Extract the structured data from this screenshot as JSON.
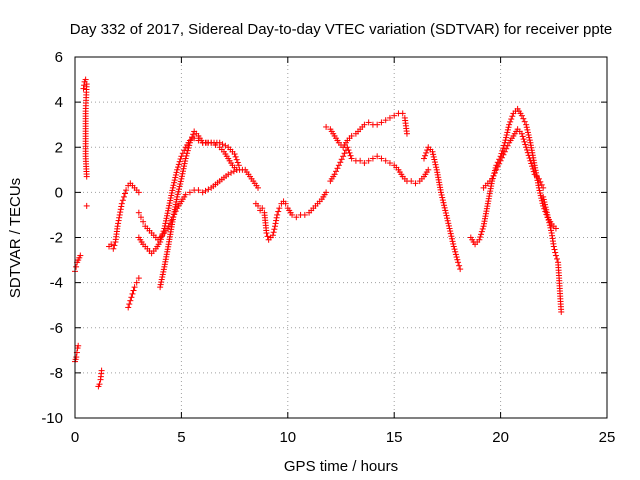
{
  "chart_data": {
    "type": "scatter",
    "title": "Day 332 of 2017, Sidereal Day-to-day VTEC variation (SDTVAR) for receiver ppte",
    "xlabel": "GPS time / hours",
    "ylabel": "SDTVAR / TECUs",
    "xlim": [
      0,
      25
    ],
    "ylim": [
      -10,
      6
    ],
    "xticks": [
      0,
      5,
      10,
      15,
      20,
      25
    ],
    "xtick_labels": [
      "0",
      "5",
      "10",
      "15",
      "20",
      "25"
    ],
    "yticks": [
      -10,
      -8,
      -6,
      -4,
      -2,
      0,
      2,
      4,
      6
    ],
    "ytick_labels": [
      "-10",
      "-8",
      "-6",
      "-4",
      "-2",
      "0",
      "2",
      "4",
      "6"
    ],
    "grid": true,
    "marker": "plus",
    "color": "#ff0000",
    "series": [
      {
        "name": "a",
        "x": [
          0.0,
          0.05,
          0.1,
          0.15,
          0.2,
          0.25
        ],
        "y": [
          -3.5,
          -3.3,
          -3.1,
          -3.0,
          -2.9,
          -2.8
        ]
      },
      {
        "name": "b",
        "x": [
          0.0,
          0.03,
          0.06,
          0.09,
          0.12,
          0.15
        ],
        "y": [
          -7.5,
          -7.4,
          -7.3,
          -7.1,
          -6.9,
          -6.8
        ]
      },
      {
        "name": "c",
        "x": [
          0.4,
          0.45,
          0.5,
          0.55,
          0.5,
          0.5,
          0.5,
          0.55
        ],
        "y": [
          4.6,
          4.9,
          5.0,
          4.8,
          3.6,
          2.6,
          1.6,
          0.7
        ]
      },
      {
        "name": "c2",
        "x": [
          0.55
        ],
        "y": [
          -0.6
        ]
      },
      {
        "name": "d",
        "x": [
          1.1,
          1.15,
          1.2,
          1.25
        ],
        "y": [
          -8.6,
          -8.5,
          -8.3,
          -7.9
        ]
      },
      {
        "name": "e",
        "x": [
          1.6,
          1.7,
          1.8,
          1.9,
          2.0,
          2.1,
          2.2,
          2.3,
          2.4,
          2.5,
          2.6,
          2.7,
          2.8,
          2.9,
          3.0
        ],
        "y": [
          -2.4,
          -2.3,
          -2.5,
          -2.2,
          -1.5,
          -1.0,
          -0.5,
          -0.2,
          0.1,
          0.3,
          0.4,
          0.3,
          0.2,
          0.1,
          0.0
        ]
      },
      {
        "name": "f",
        "x": [
          2.5,
          2.6,
          2.7,
          2.8,
          2.9,
          3.0
        ],
        "y": [
          -5.1,
          -4.8,
          -4.5,
          -4.2,
          -4.0,
          -3.8
        ]
      },
      {
        "name": "g",
        "x": [
          3.0,
          3.1,
          3.2,
          3.3,
          3.4,
          3.5,
          3.6,
          3.7,
          3.8,
          3.9,
          4.0,
          4.2,
          4.4,
          4.6,
          4.8,
          5.0,
          5.2,
          5.4,
          5.6,
          5.8,
          6.0,
          6.4,
          6.8,
          7.2,
          7.6,
          8.0,
          8.3,
          8.6
        ],
        "y": [
          -0.9,
          -1.1,
          -1.3,
          -1.5,
          -1.6,
          -1.7,
          -1.8,
          -1.9,
          -2.0,
          -2.1,
          -2.0,
          -1.8,
          -1.5,
          -1.1,
          -0.7,
          -0.4,
          -0.1,
          0.0,
          0.1,
          0.1,
          0.0,
          0.2,
          0.5,
          0.8,
          1.0,
          1.0,
          0.6,
          0.2
        ]
      },
      {
        "name": "h",
        "x": [
          3.0,
          3.2,
          3.4,
          3.6,
          3.8,
          4.0,
          4.2,
          4.4,
          4.6,
          4.8,
          5.0,
          5.2,
          5.4,
          5.6,
          5.8,
          6.0,
          6.4,
          6.8,
          7.2,
          7.5,
          7.7
        ],
        "y": [
          -2.0,
          -2.3,
          -2.5,
          -2.7,
          -2.5,
          -2.2,
          -1.6,
          -0.7,
          0.2,
          1.0,
          1.6,
          2.0,
          2.3,
          2.4,
          2.3,
          2.2,
          2.2,
          2.2,
          2.0,
          1.7,
          1.2
        ]
      },
      {
        "name": "i",
        "x": [
          4.0,
          4.2,
          4.4,
          4.6,
          4.8,
          5.0,
          5.2,
          5.4,
          5.6,
          5.8,
          6.0,
          6.2,
          6.4,
          6.6,
          6.8,
          7.0,
          7.2,
          7.4,
          7.6
        ],
        "y": [
          -4.2,
          -3.3,
          -2.3,
          -1.2,
          -0.2,
          0.6,
          1.5,
          2.2,
          2.7,
          2.5,
          2.2,
          2.2,
          2.2,
          2.1,
          2.0,
          1.8,
          1.5,
          1.2,
          1.0
        ]
      },
      {
        "name": "j",
        "x": [
          8.5,
          8.6,
          8.7,
          8.8,
          8.9,
          9.0,
          9.1,
          9.2,
          9.3,
          9.4,
          9.5,
          9.6,
          9.7,
          9.8,
          9.9,
          10.0,
          10.2,
          10.4,
          10.6,
          10.8,
          11.0,
          11.2,
          11.4,
          11.6,
          11.8
        ],
        "y": [
          -0.5,
          -0.6,
          -0.8,
          -0.7,
          -0.9,
          -1.8,
          -2.1,
          -2.0,
          -1.9,
          -1.5,
          -1.0,
          -0.7,
          -0.5,
          -0.4,
          -0.5,
          -0.7,
          -1.0,
          -1.1,
          -1.0,
          -1.0,
          -0.9,
          -0.7,
          -0.5,
          -0.3,
          0.0
        ]
      },
      {
        "name": "k",
        "x": [
          11.8,
          12.0,
          12.2,
          12.4,
          12.6,
          12.8,
          13.0,
          13.2,
          13.4,
          13.6,
          13.8,
          14.0,
          14.2,
          14.4,
          14.6,
          14.8,
          15.0,
          15.2,
          15.4,
          15.5,
          15.6
        ],
        "y": [
          2.9,
          2.8,
          2.5,
          2.2,
          2.0,
          2.3,
          2.5,
          2.6,
          2.8,
          3.0,
          3.1,
          3.0,
          3.0,
          3.1,
          3.2,
          3.3,
          3.4,
          3.5,
          3.5,
          3.3,
          2.6
        ]
      },
      {
        "name": "l",
        "x": [
          12.0,
          12.2,
          12.4,
          12.6,
          12.8,
          13.0,
          13.2,
          13.4,
          13.6,
          13.8,
          14.0,
          14.2,
          14.4,
          14.6,
          14.8,
          15.0,
          15.2,
          15.4,
          15.6,
          15.8,
          16.0,
          16.2,
          16.4,
          16.6
        ],
        "y": [
          0.5,
          0.8,
          1.2,
          1.6,
          2.0,
          1.5,
          1.4,
          1.4,
          1.3,
          1.4,
          1.5,
          1.6,
          1.5,
          1.4,
          1.3,
          1.2,
          1.0,
          0.7,
          0.5,
          0.5,
          0.4,
          0.5,
          0.7,
          1.0
        ]
      },
      {
        "name": "m",
        "x": [
          16.4,
          16.6,
          16.8,
          17.0,
          17.2,
          17.4,
          17.6,
          17.8,
          18.0,
          18.1
        ],
        "y": [
          1.5,
          2.0,
          1.8,
          1.0,
          0.0,
          -0.8,
          -1.6,
          -2.4,
          -3.1,
          -3.4
        ]
      },
      {
        "name": "n",
        "x": [
          18.6,
          18.8,
          19.0,
          19.2,
          19.4,
          19.6,
          19.8,
          20.0,
          20.2,
          20.4,
          20.6,
          20.8,
          21.0,
          21.2,
          21.4,
          21.6,
          21.8,
          22.0,
          22.2,
          22.4,
          22.6
        ],
        "y": [
          -2.0,
          -2.3,
          -2.1,
          -1.5,
          -0.5,
          0.5,
          1.2,
          1.6,
          2.2,
          3.0,
          3.5,
          3.7,
          3.4,
          3.0,
          2.2,
          1.2,
          0.2,
          -0.6,
          -1.1,
          -1.4,
          -1.6
        ]
      },
      {
        "name": "o",
        "x": [
          19.2,
          19.4,
          19.6,
          19.8,
          20.0,
          20.2,
          20.4,
          20.6,
          20.8,
          21.0,
          21.2,
          21.4,
          21.6,
          21.8,
          22.0
        ],
        "y": [
          0.2,
          0.4,
          0.6,
          1.0,
          1.4,
          1.8,
          2.2,
          2.5,
          2.8,
          2.6,
          2.0,
          1.4,
          0.8,
          0.6,
          0.2
        ]
      },
      {
        "name": "p",
        "x": [
          22.0,
          22.2,
          22.4,
          22.5,
          22.6,
          22.7,
          22.75,
          22.8,
          22.85
        ],
        "y": [
          -0.2,
          -1.0,
          -1.8,
          -2.4,
          -2.8,
          -3.1,
          -3.8,
          -4.6,
          -5.3
        ]
      }
    ]
  }
}
